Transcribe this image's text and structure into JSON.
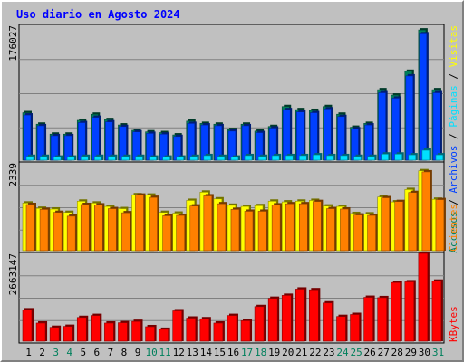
{
  "chart_data": {
    "type": "bar",
    "title": "Uso diario en Agosto 2024",
    "categories": [
      "1",
      "2",
      "3",
      "4",
      "5",
      "6",
      "7",
      "8",
      "9",
      "10",
      "11",
      "12",
      "13",
      "14",
      "15",
      "16",
      "17",
      "18",
      "19",
      "20",
      "21",
      "22",
      "23",
      "24",
      "25",
      "26",
      "27",
      "28",
      "29",
      "30",
      "31"
    ],
    "weekend_days": [
      "3",
      "4",
      "10",
      "11",
      "17",
      "18",
      "24",
      "25",
      "31"
    ],
    "legend": {
      "panel1": [
        "Accesos",
        "Archivos",
        "Páginas",
        "Visitas"
      ],
      "panel2": [
        "Clientes"
      ],
      "panel3": [
        "KBytes"
      ]
    },
    "panels": [
      {
        "name": "hits",
        "ymax_label": "176027",
        "ylim": [
          0,
          176027
        ],
        "series": [
          {
            "name": "Accesos",
            "values": [
              62000,
              47000,
              34000,
              34000,
              52000,
              60000,
              53000,
              46000,
              39000,
              37000,
              36000,
              33000,
              51000,
              48000,
              47000,
              40000,
              47000,
              38000,
              44000,
              70000,
              66000,
              65000,
              70000,
              60000,
              43000,
              48000,
              92000,
              85000,
              116000,
              170000,
              92000
            ]
          },
          {
            "name": "Archivos",
            "values": [
              59000,
              45000,
              32000,
              32000,
              49000,
              56000,
              50000,
              44000,
              37000,
              35000,
              34000,
              31000,
              48000,
              46000,
              45000,
              38000,
              45000,
              36000,
              42000,
              66000,
              63000,
              62000,
              67000,
              57000,
              41000,
              46000,
              88000,
              81000,
              110000,
              165000,
              88000
            ]
          },
          {
            "name": "Páginas",
            "values": [
              5000,
              5000,
              4000,
              4000,
              5000,
              5000,
              5000,
              5000,
              5000,
              4000,
              4000,
              4000,
              5000,
              6000,
              5000,
              4000,
              6000,
              5000,
              6000,
              6000,
              6000,
              7000,
              6000,
              6000,
              5000,
              5000,
              8000,
              8000,
              7000,
              13000,
              7000
            ]
          },
          {
            "name": "Visitas",
            "values": []
          }
        ]
      },
      {
        "name": "clients",
        "ymax_label": "2339",
        "ylim": [
          0,
          2339
        ],
        "series": [
          {
            "name": "Visitas",
            "values": [
              1270,
              1130,
              1110,
              1020,
              1320,
              1270,
              1180,
              1120,
              1490,
              1480,
              1020,
              1000,
              1340,
              1560,
              1380,
              1210,
              1180,
              1200,
              1320,
              1300,
              1320,
              1340,
              1190,
              1180,
              990,
              980,
              1430,
              1300,
              1630,
              2130,
              1370
            ]
          },
          {
            "name": "Clientes",
            "values": [
              1230,
              1100,
              1020,
              920,
              1230,
              1220,
              1120,
              1010,
              1480,
              1420,
              930,
              940,
              1190,
              1460,
              1250,
              1100,
              1050,
              1050,
              1220,
              1250,
              1250,
              1310,
              1120,
              1110,
              950,
              940,
              1410,
              1310,
              1550,
              2100,
              1360
            ]
          }
        ]
      },
      {
        "name": "kbytes",
        "ymax_label": "2663147",
        "ylim": [
          0,
          2663147
        ],
        "series": [
          {
            "name": "KBytes",
            "values": [
              950000,
              550000,
              420000,
              450000,
              720000,
              780000,
              550000,
              560000,
              600000,
              440000,
              360000,
              920000,
              700000,
              680000,
              550000,
              780000,
              620000,
              1050000,
              1300000,
              1390000,
              1580000,
              1560000,
              1160000,
              750000,
              810000,
              1330000,
              1320000,
              1780000,
              1800000,
              2663147,
              1820000
            ]
          }
        ]
      }
    ],
    "colors": {
      "accesos": "#00805c",
      "archivos": "#0040ff",
      "paginas": "#00e0ff",
      "visitas": "#ffff00",
      "clientes": "#ff8000",
      "kbytes": "#ff0000",
      "title": "#0000ff",
      "weekend": "#00805c"
    },
    "grid": true
  }
}
